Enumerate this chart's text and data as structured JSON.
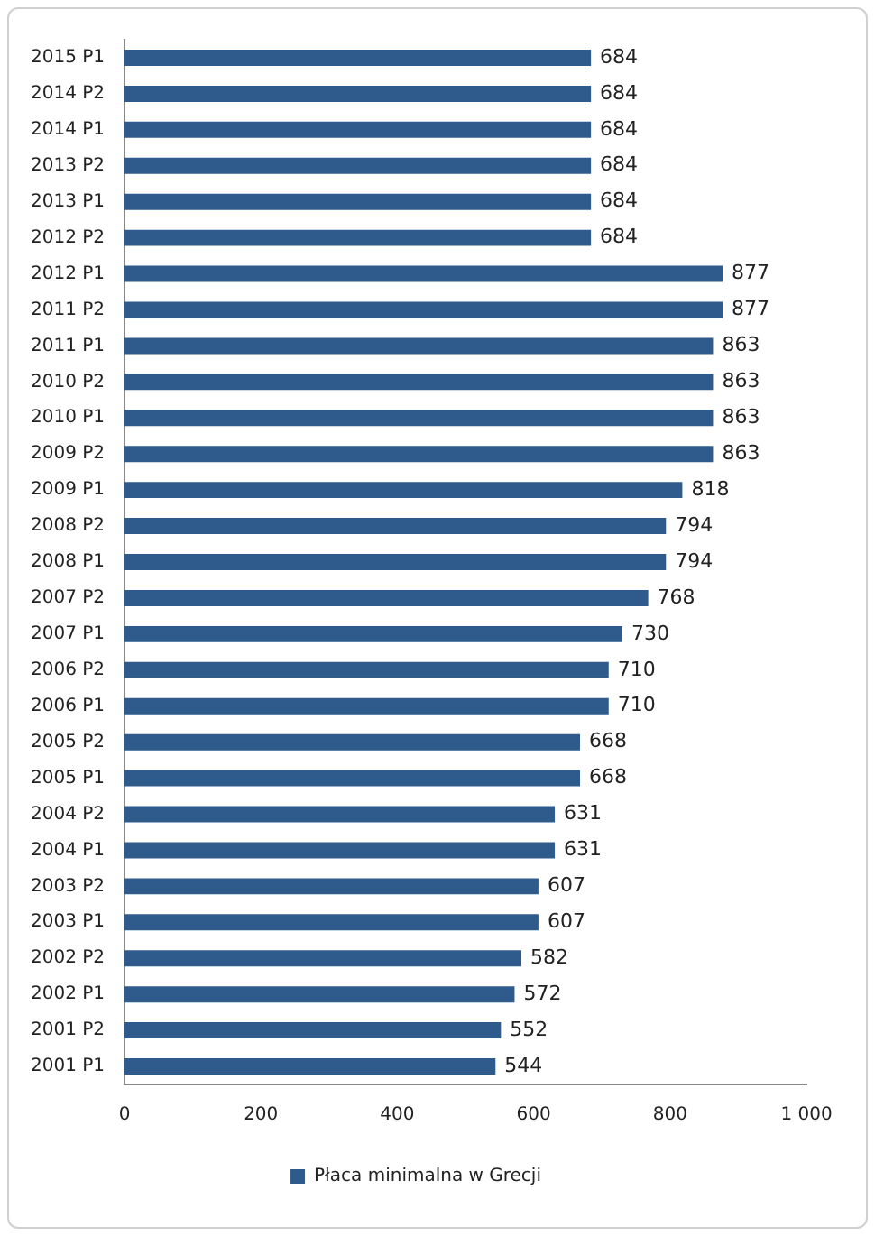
{
  "chart_data": {
    "type": "bar",
    "orientation": "horizontal",
    "categories": [
      "2015 P1",
      "2014 P2",
      "2014 P1",
      "2013 P2",
      "2013 P1",
      "2012 P2",
      "2012 P1",
      "2011 P2",
      "2011 P1",
      "2010 P2",
      "2010 P1",
      "2009 P2",
      "2009 P1",
      "2008 P2",
      "2008 P1",
      "2007 P2",
      "2007 P1",
      "2006 P2",
      "2006 P1",
      "2005 P2",
      "2005 P1",
      "2004 P2",
      "2004 P1",
      "2003 P2",
      "2003 P1",
      "2002 P2",
      "2002 P1",
      "2001 P2",
      "2001 P1"
    ],
    "series": [
      {
        "name": "Płaca minimalna w Grecji",
        "color": "#2f5b8c",
        "values": [
          684,
          684,
          684,
          684,
          684,
          684,
          877,
          877,
          863,
          863,
          863,
          863,
          818,
          794,
          794,
          768,
          730,
          710,
          710,
          668,
          668,
          631,
          631,
          607,
          607,
          582,
          572,
          552,
          544
        ]
      }
    ],
    "xlim": [
      0,
      1000
    ],
    "xticks": [
      0,
      200,
      400,
      600,
      800,
      {
        "value": 1000,
        "label": "1 000"
      }
    ],
    "grid": false,
    "legend": "bottom",
    "data_labels": true
  }
}
